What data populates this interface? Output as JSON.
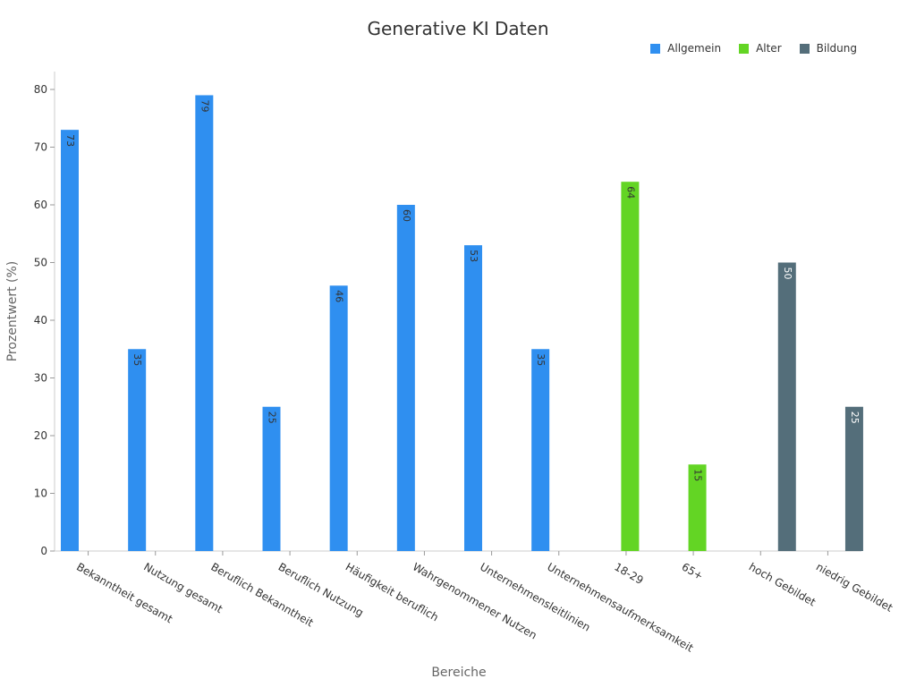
{
  "chart_data": {
    "type": "bar",
    "title": "Generative KI Daten",
    "xlabel": "Bereiche",
    "ylabel": "Prozentwert (%)",
    "ylim": [
      0,
      80
    ],
    "yticks": [
      0,
      10,
      20,
      30,
      40,
      50,
      60,
      70,
      80
    ],
    "grid": false,
    "legend_position": "top-right",
    "categories": [
      "Bekanntheit gesamt",
      "Nutzung gesamt",
      "Beruflich Bekanntheit",
      "Beruflich Nutzung",
      "Häufigkeit beruflich",
      "Wahrgenommener Nutzen",
      "Unternehmensleitlinien",
      "Unternehmensaufmerksamkeit",
      "18-29",
      "65+",
      "hoch Gebildet",
      "niedrig Gebildet"
    ],
    "series": [
      {
        "name": "Allgemein",
        "color": "#2f8ff0",
        "values": [
          73,
          35,
          79,
          25,
          46,
          60,
          53,
          35,
          null,
          null,
          null,
          null
        ]
      },
      {
        "name": "Alter",
        "color": "#63d524",
        "values": [
          null,
          null,
          null,
          null,
          null,
          null,
          null,
          null,
          64,
          15,
          null,
          null
        ]
      },
      {
        "name": "Bildung",
        "color": "#546e7a",
        "values": [
          null,
          null,
          null,
          null,
          null,
          null,
          null,
          null,
          null,
          null,
          50,
          25
        ]
      }
    ]
  }
}
